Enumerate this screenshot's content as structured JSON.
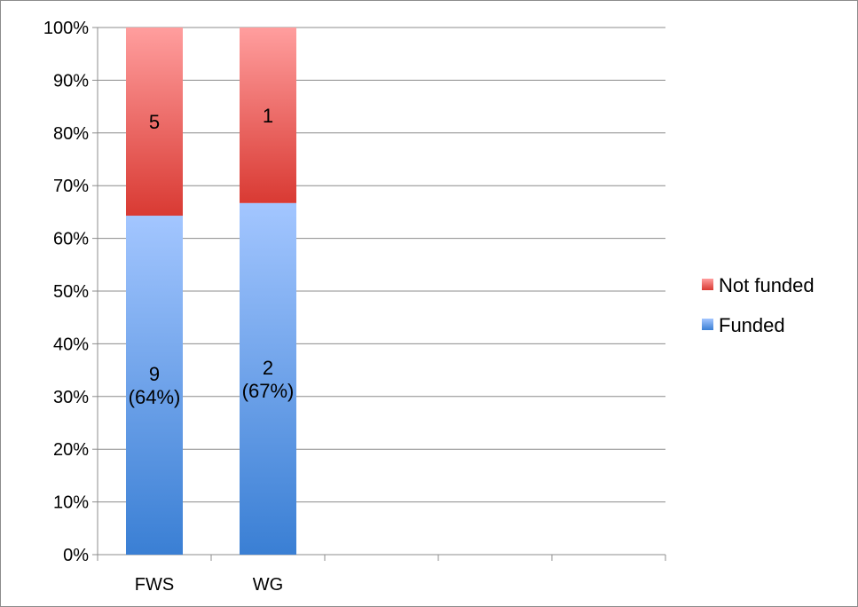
{
  "chart_data": {
    "type": "bar",
    "stacked": true,
    "normalized": true,
    "categories": [
      "FWS",
      "WG",
      "",
      "",
      ""
    ],
    "series": [
      {
        "name": "Funded",
        "counts": [
          9,
          2
        ],
        "percent": [
          64.3,
          66.7
        ],
        "labels": [
          [
            "9",
            "(64%)"
          ],
          [
            "2",
            "(67%)"
          ]
        ],
        "color_top": "#a3c6ff",
        "color_bottom": "#3a7fd4"
      },
      {
        "name": "Not funded",
        "counts": [
          5,
          1
        ],
        "percent": [
          35.7,
          33.3
        ],
        "labels": [
          [
            "5"
          ],
          [
            "1"
          ]
        ],
        "color_top": "#ff9e9e",
        "color_bottom": "#d93a33"
      }
    ],
    "y_ticks": [
      "0%",
      "10%",
      "20%",
      "30%",
      "40%",
      "50%",
      "60%",
      "70%",
      "80%",
      "90%",
      "100%"
    ],
    "ylim": [
      0,
      100
    ],
    "grid": true,
    "legend_position": "right",
    "title": "",
    "xlabel": "",
    "ylabel": ""
  }
}
